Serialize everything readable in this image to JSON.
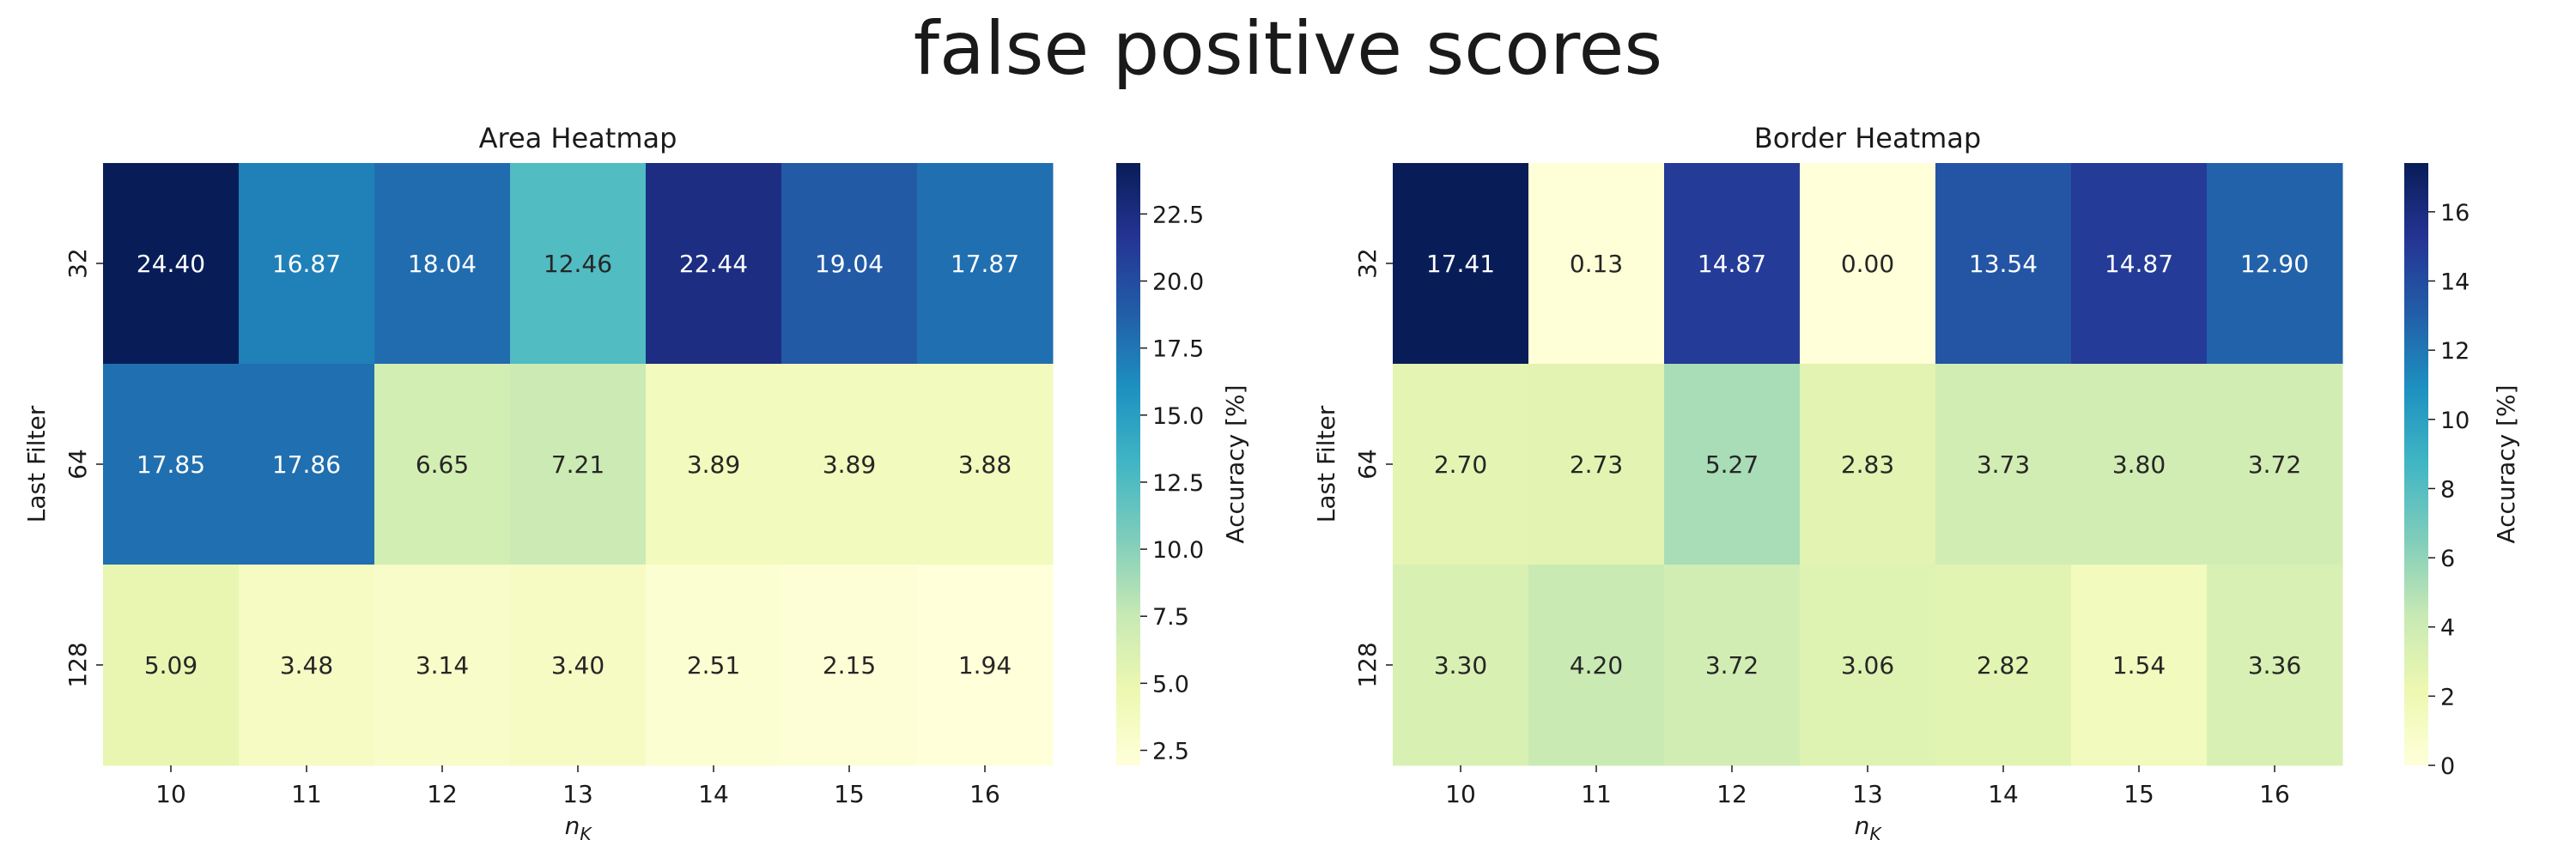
{
  "figure": {
    "title": "false positive scores"
  },
  "chart_data": [
    {
      "type": "heatmap",
      "title": "Area Heatmap",
      "xlabel": "n",
      "xlabel_sub": "K",
      "ylabel": "Last Filter",
      "x": [
        "10",
        "11",
        "12",
        "13",
        "14",
        "15",
        "16"
      ],
      "y": [
        "32",
        "64",
        "128"
      ],
      "values": [
        [
          24.4,
          16.87,
          18.04,
          12.46,
          22.44,
          19.04,
          17.87
        ],
        [
          17.85,
          17.86,
          6.65,
          7.21,
          3.89,
          3.89,
          3.88
        ],
        [
          5.09,
          3.48,
          3.14,
          3.4,
          2.51,
          2.15,
          1.94
        ]
      ],
      "labels": [
        [
          "24.40",
          "16.87",
          "18.04",
          "12.46",
          "22.44",
          "19.04",
          "17.87"
        ],
        [
          "17.85",
          "17.86",
          "6.65",
          "7.21",
          "3.89",
          "3.89",
          "3.88"
        ],
        [
          "5.09",
          "3.48",
          "3.14",
          "3.40",
          "2.51",
          "2.15",
          "1.94"
        ]
      ],
      "colorbar": {
        "label": "Accuracy [%]",
        "range": [
          1.94,
          24.4
        ],
        "ticks": [
          2.5,
          5.0,
          7.5,
          10.0,
          12.5,
          15.0,
          17.5,
          20.0,
          22.5
        ],
        "tick_labels": [
          "2.5",
          "5.0",
          "7.5",
          "10.0",
          "12.5",
          "15.0",
          "17.5",
          "20.0",
          "22.5"
        ]
      },
      "colormap": "YlGnBu"
    },
    {
      "type": "heatmap",
      "title": "Border Heatmap",
      "xlabel": "n",
      "xlabel_sub": "K",
      "ylabel": "Last Filter",
      "x": [
        "10",
        "11",
        "12",
        "13",
        "14",
        "15",
        "16"
      ],
      "y": [
        "32",
        "64",
        "128"
      ],
      "values": [
        [
          17.41,
          0.13,
          14.87,
          0.0,
          13.54,
          14.87,
          12.9
        ],
        [
          2.7,
          2.73,
          5.27,
          2.83,
          3.73,
          3.8,
          3.72
        ],
        [
          3.3,
          4.2,
          3.72,
          3.06,
          2.82,
          1.54,
          3.36
        ]
      ],
      "labels": [
        [
          "17.41",
          "0.13",
          "14.87",
          "0.00",
          "13.54",
          "14.87",
          "12.90"
        ],
        [
          "2.70",
          "2.73",
          "5.27",
          "2.83",
          "3.73",
          "3.80",
          "3.72"
        ],
        [
          "3.30",
          "4.20",
          "3.72",
          "3.06",
          "2.82",
          "1.54",
          "3.36"
        ]
      ],
      "colorbar": {
        "label": "Accuracy [%]",
        "range": [
          0,
          17.41
        ],
        "ticks": [
          0,
          2,
          4,
          6,
          8,
          10,
          12,
          14,
          16
        ],
        "tick_labels": [
          "0",
          "2",
          "4",
          "6",
          "8",
          "10",
          "12",
          "14",
          "16"
        ]
      },
      "colormap": "YlGnBu"
    }
  ]
}
